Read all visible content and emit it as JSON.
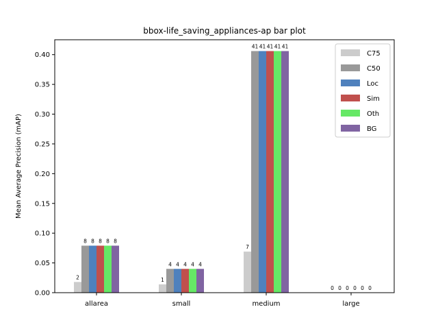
{
  "chart_data": {
    "type": "bar",
    "title": "bbox-life_saving_appliances-ap bar plot",
    "xlabel": "",
    "ylabel": "Mean Average Precision (mAP)",
    "ylim": [
      0,
      0.425
    ],
    "yticks": [
      "0.00",
      "0.05",
      "0.10",
      "0.15",
      "0.20",
      "0.25",
      "0.30",
      "0.35",
      "0.40"
    ],
    "categories": [
      "allarea",
      "small",
      "medium",
      "large"
    ],
    "legend_position": "upper right",
    "grid": false,
    "series": [
      {
        "name": "C75",
        "color": "#cccccc",
        "values": [
          0.018,
          0.014,
          0.069,
          0.0
        ],
        "labels": [
          "2",
          "1",
          "7",
          "0"
        ]
      },
      {
        "name": "C50",
        "color": "#999999",
        "values": [
          0.079,
          0.04,
          0.406,
          0.0
        ],
        "labels": [
          "8",
          "4",
          "41",
          "0"
        ]
      },
      {
        "name": "Loc",
        "color": "#4f81bd",
        "values": [
          0.079,
          0.04,
          0.406,
          0.0
        ],
        "labels": [
          "8",
          "4",
          "41",
          "0"
        ]
      },
      {
        "name": "Sim",
        "color": "#c0504d",
        "values": [
          0.079,
          0.04,
          0.406,
          0.0
        ],
        "labels": [
          "8",
          "4",
          "41",
          "0"
        ]
      },
      {
        "name": "Oth",
        "color": "#66e866",
        "values": [
          0.079,
          0.04,
          0.406,
          0.0
        ],
        "labels": [
          "8",
          "4",
          "41",
          "0"
        ]
      },
      {
        "name": "BG",
        "color": "#8064a2",
        "values": [
          0.079,
          0.04,
          0.406,
          0.0
        ],
        "labels": [
          "8",
          "4",
          "41",
          "0"
        ]
      }
    ]
  }
}
